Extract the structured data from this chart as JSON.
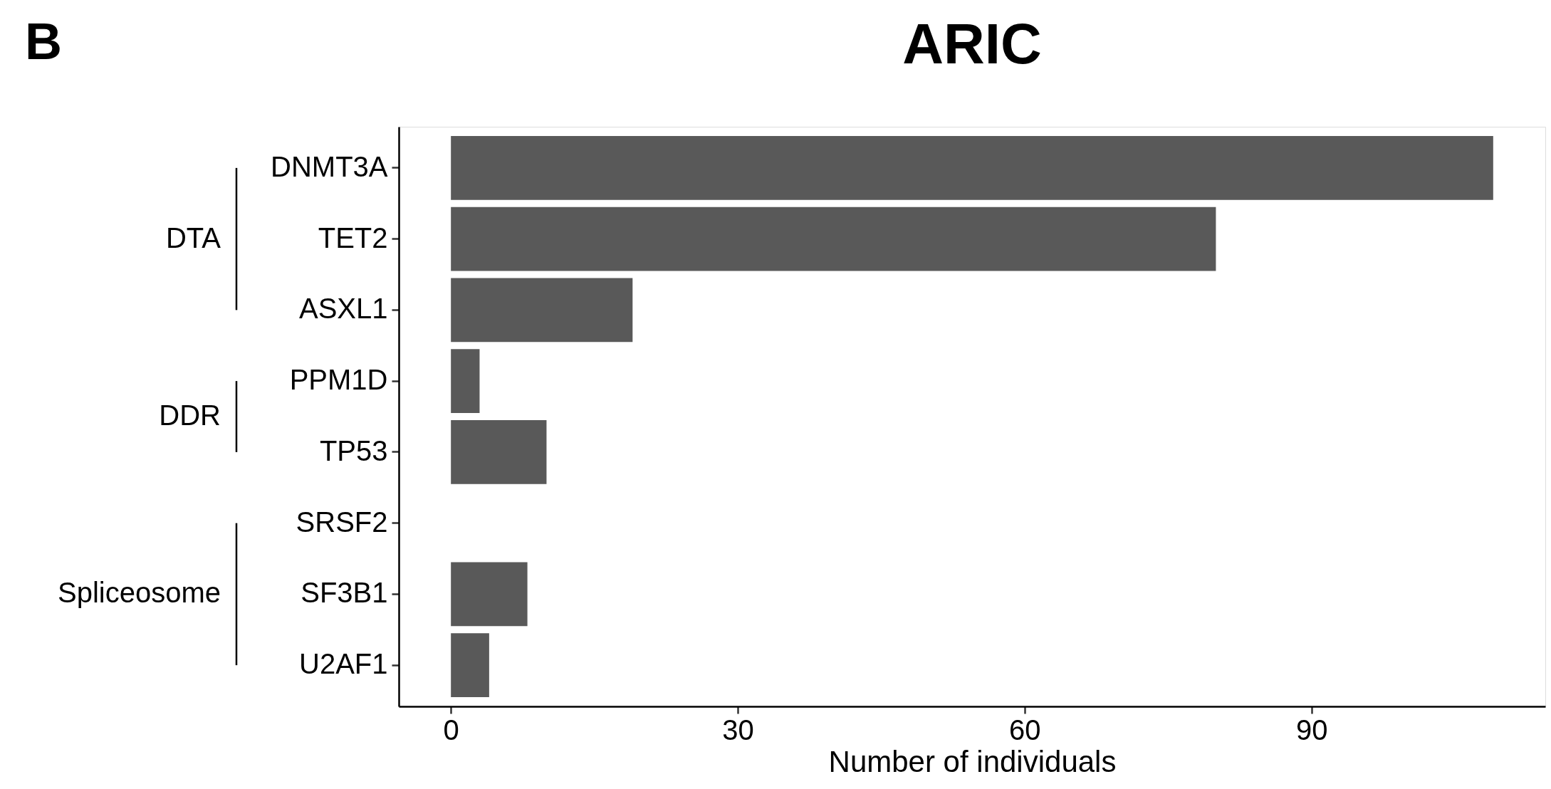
{
  "chart_data": {
    "type": "bar",
    "orientation": "horizontal",
    "title": "ARIC",
    "xlabel": "Number of individuals",
    "categories": [
      "DNMT3A",
      "TET2",
      "ASXL1",
      "PPM1D",
      "TP53",
      "SRSF2",
      "SF3B1",
      "U2AF1"
    ],
    "values": [
      109,
      80,
      19,
      3,
      10,
      0,
      8,
      4
    ],
    "color": "#595959",
    "xlim": [
      -5.45,
      114.45
    ],
    "xticks": [
      0,
      30,
      60,
      90
    ],
    "grid": false,
    "annotations": [
      "B",
      "DTA",
      "DDR",
      "Spliceosome"
    ]
  }
}
